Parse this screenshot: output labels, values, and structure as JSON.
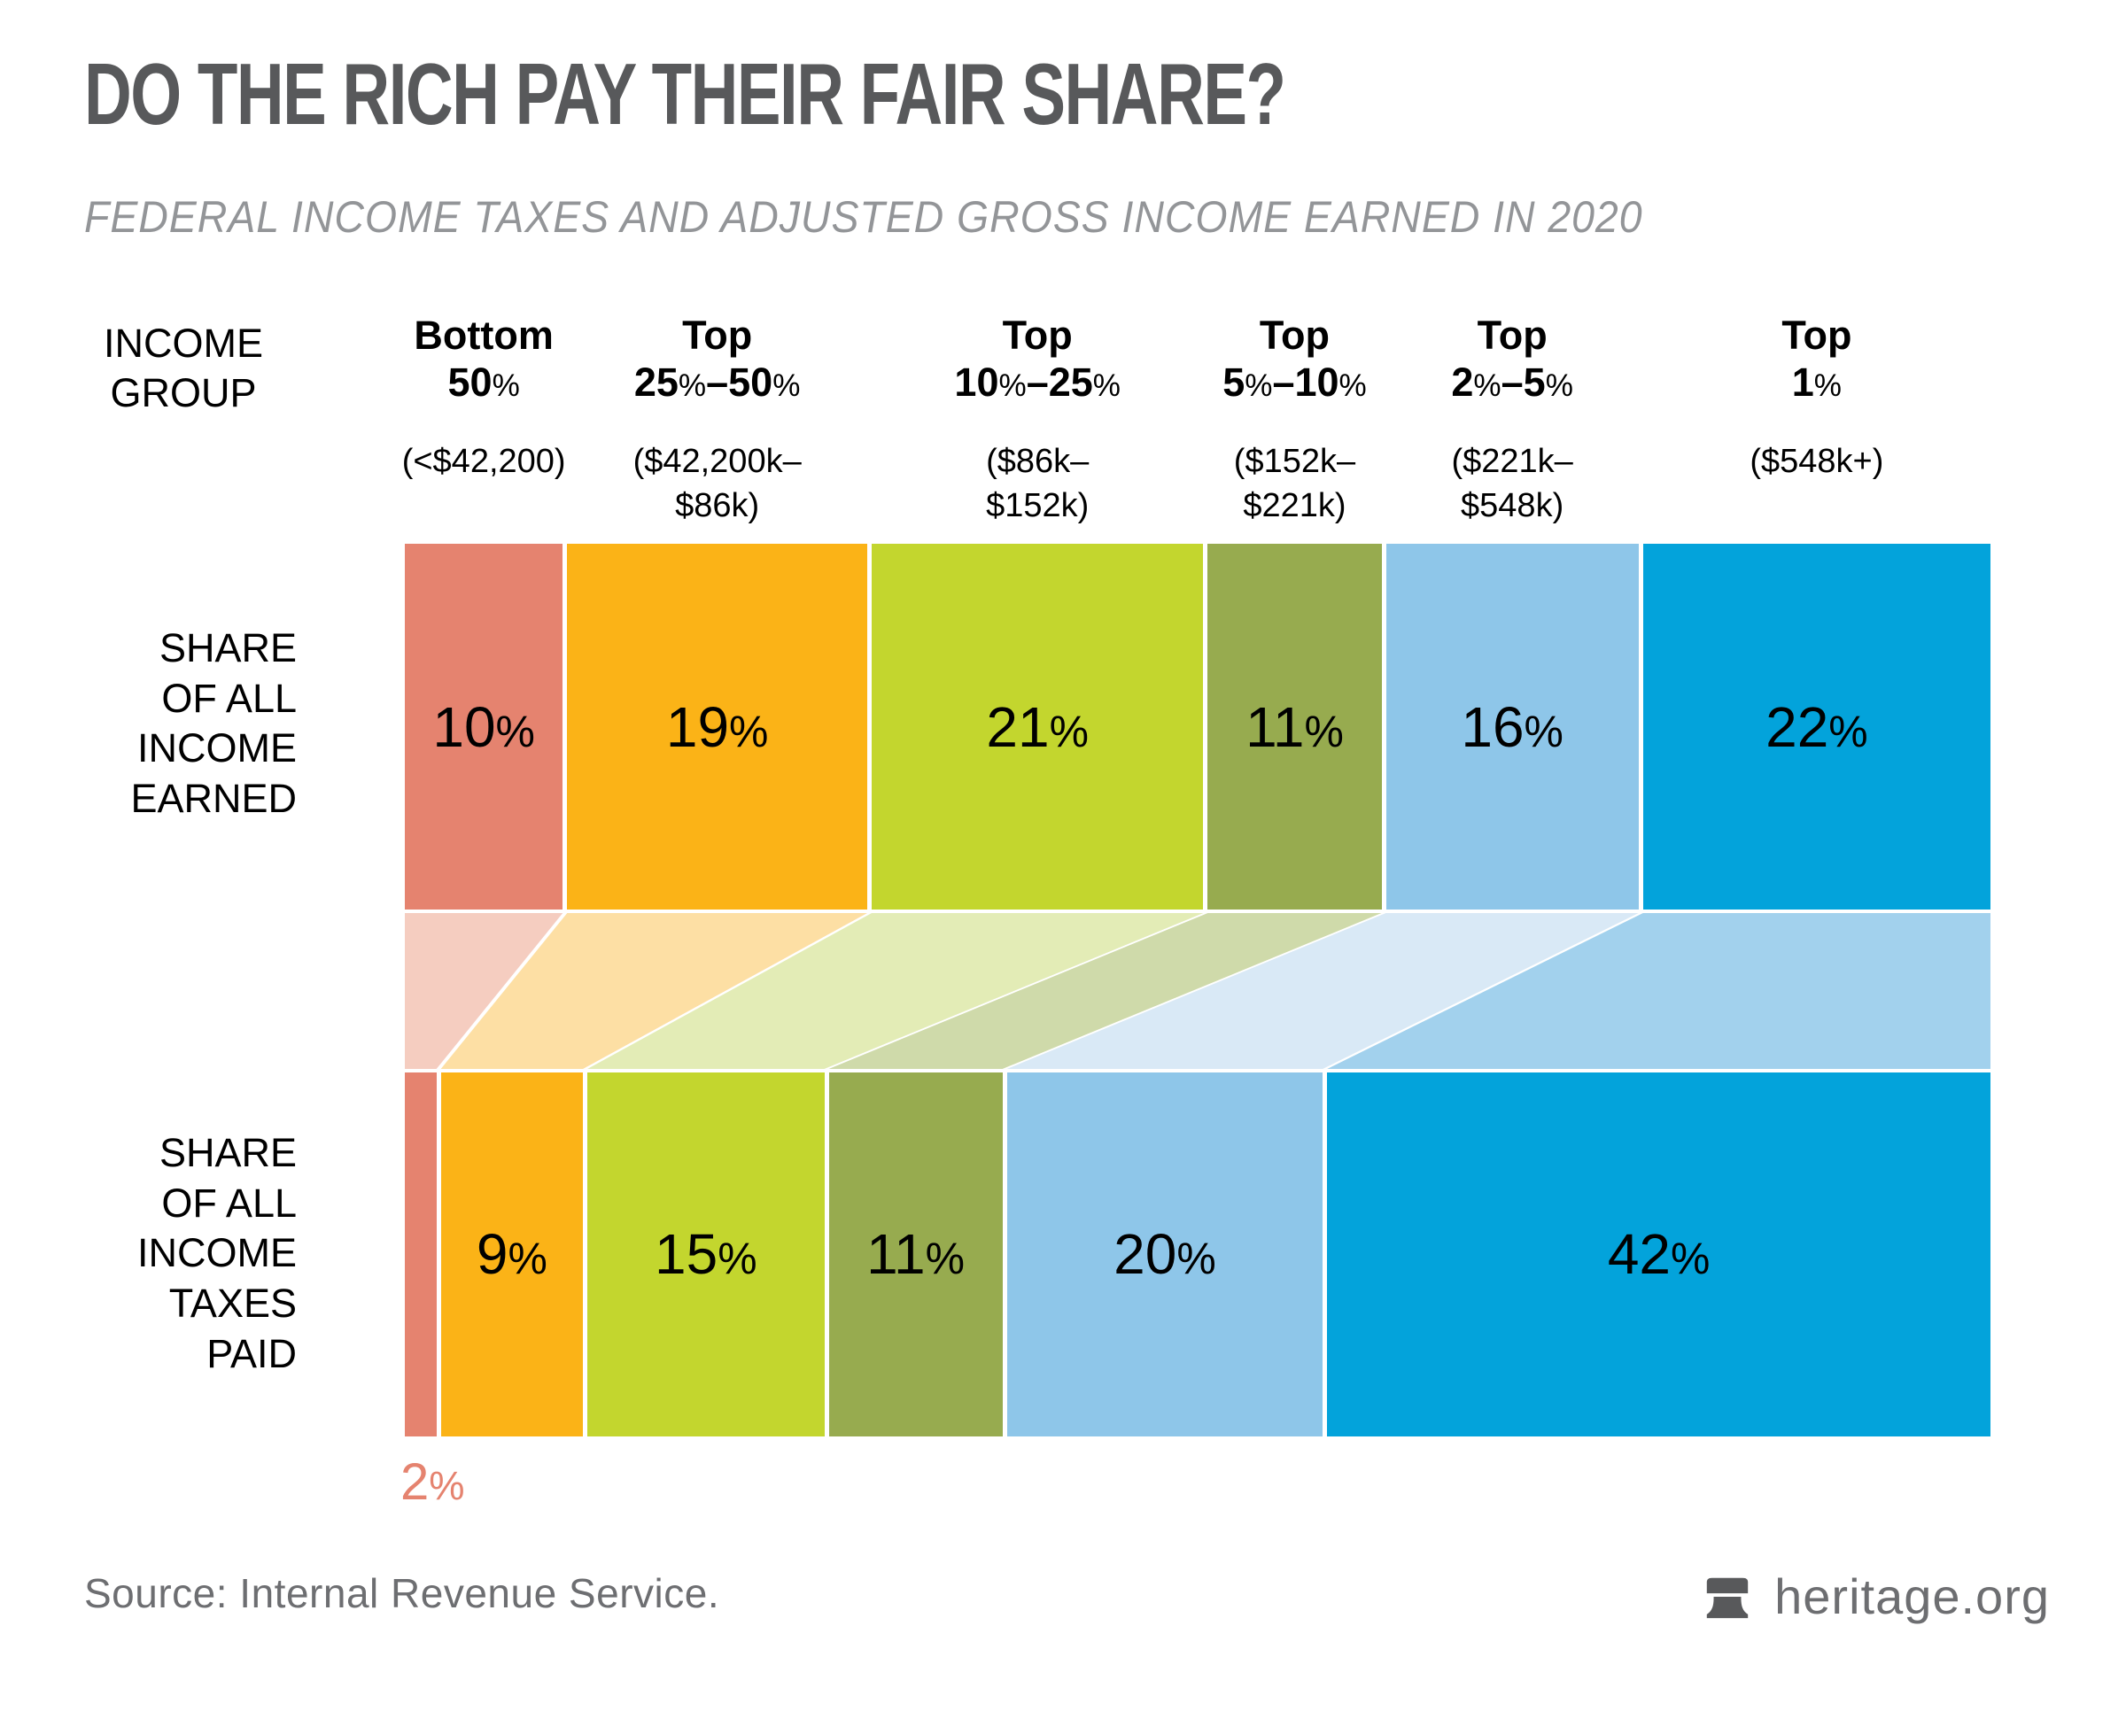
{
  "header": {
    "title": "DO THE RICH PAY THEIR FAIR SHARE?",
    "subtitle": "FEDERAL INCOME TAXES AND ADJUSTED GROSS INCOME EARNED IN 2020"
  },
  "axis": {
    "income_group_lines": [
      "INCOME",
      "GROUP"
    ]
  },
  "rows": {
    "earned_lines": [
      "SHARE",
      "OF ALL",
      "INCOME",
      "EARNED"
    ],
    "taxes_lines": [
      "SHARE",
      "OF ALL",
      "INCOME",
      "TAXES",
      "PAID"
    ]
  },
  "chart_data": {
    "type": "bar",
    "variant": "proportional-stacked-flow-bars",
    "unit": "%",
    "categories": [
      "Bottom 50%",
      "Top 25%–50%",
      "Top 10%–25%",
      "Top 5%–10%",
      "Top 2%–5%",
      "Top 1%"
    ],
    "category_header_lines": [
      [
        "Bottom",
        "50%"
      ],
      [
        "Top",
        "25%–50%"
      ],
      [
        "Top",
        "10%–25%"
      ],
      [
        "Top",
        "5%–10%"
      ],
      [
        "Top",
        "2%–5%"
      ],
      [
        "Top",
        "1%"
      ]
    ],
    "income_ranges_lines": [
      [
        "(<$42,200)"
      ],
      [
        "($42,200k–",
        "$86k)"
      ],
      [
        "($86k–",
        "$152k)"
      ],
      [
        "($152k–",
        "$221k)"
      ],
      [
        "($221k–",
        "$548k)"
      ],
      [
        "($548k+)"
      ]
    ],
    "series": [
      {
        "name": "SHARE OF ALL INCOME EARNED",
        "values": [
          10,
          19,
          21,
          11,
          16,
          22
        ]
      },
      {
        "name": "SHARE OF ALL INCOME TAXES PAID",
        "values": [
          2,
          9,
          15,
          11,
          20,
          42
        ]
      }
    ],
    "colors": [
      "#E5836F",
      "#FBB317",
      "#C3D62E",
      "#97AB4F",
      "#8EC6E9",
      "#03A3DB"
    ],
    "flow_colors": [
      "#F5CDC0",
      "#FDDFA4",
      "#E3ECB6",
      "#CFDAAA",
      "#D9E9F6",
      "#A2D1ED"
    ],
    "value_label_format": "{v}%",
    "legend_position": "none",
    "grid": false
  },
  "footer": {
    "source": "Source: Internal Revenue Service.",
    "logo_text": "heritage.org"
  }
}
